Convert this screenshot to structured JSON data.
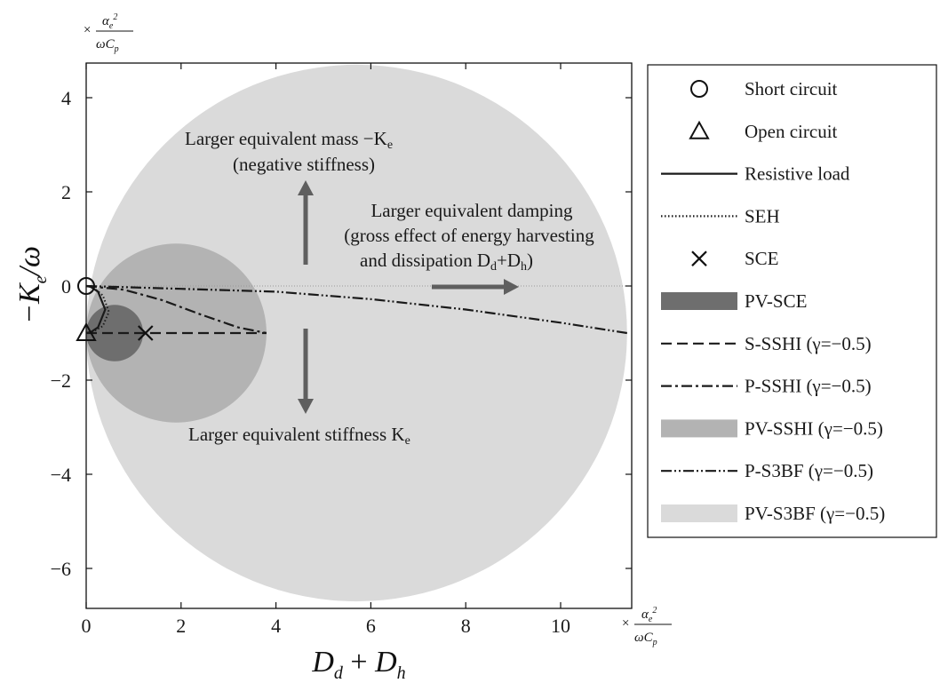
{
  "chart_data": {
    "type": "line",
    "xlabel": "D_d + D_h",
    "ylabel": "−K_e/ω",
    "x_unit": "× α_e² / ωC_p",
    "y_unit": "× α_e² / ωC_p",
    "xlim": [
      0,
      11.5
    ],
    "ylim": [
      -6.8,
      4.8
    ],
    "x_ticks": [
      0,
      2,
      4,
      6,
      8,
      10
    ],
    "y_ticks": [
      4,
      2,
      0,
      -2,
      -4,
      -6
    ],
    "grid": false,
    "legend_placement": "right, outside",
    "regions": [
      {
        "name": "PV-SCE",
        "center": [
          0.6,
          -1.0
        ],
        "radius": 0.6,
        "color": "#6e6e6e"
      },
      {
        "name": "PV-SSHI (γ=−0.5)",
        "center": [
          1.9,
          -1.0
        ],
        "radius": 1.9,
        "color": "#b3b3b3"
      },
      {
        "name": "PV-S3BF (γ=−0.5)",
        "center": [
          5.7,
          -1.0
        ],
        "radius": 5.7,
        "color": "#dadada"
      }
    ],
    "series": [
      {
        "name": "Resistive load",
        "style": "solid",
        "points": [
          [
            0,
            0
          ],
          [
            0.1,
            -0.02
          ],
          [
            0.25,
            -0.12
          ],
          [
            0.4,
            -0.5
          ],
          [
            0.25,
            -0.88
          ],
          [
            0.1,
            -0.98
          ],
          [
            0,
            -1
          ]
        ]
      },
      {
        "name": "SEH",
        "style": "dotted",
        "points": [
          [
            0,
            0
          ],
          [
            0.15,
            -0.03
          ],
          [
            0.35,
            -0.2
          ],
          [
            0.48,
            -0.55
          ],
          [
            0.35,
            -0.85
          ],
          [
            0.15,
            -0.97
          ],
          [
            0,
            -1
          ]
        ]
      },
      {
        "name": "S-SSHI (γ=−0.5)",
        "style": "dashed",
        "points": [
          [
            0,
            -1
          ],
          [
            3.8,
            -1
          ]
        ]
      },
      {
        "name": "P-SSHI (γ=−0.5)",
        "style": "dashdot",
        "points": [
          [
            0,
            0
          ],
          [
            0.8,
            -0.08
          ],
          [
            1.6,
            -0.3
          ],
          [
            2.4,
            -0.6
          ],
          [
            3.2,
            -0.88
          ],
          [
            3.8,
            -1
          ]
        ]
      },
      {
        "name": "P-S3BF (γ=−0.5)",
        "style": "dashdotdot",
        "points": [
          [
            0,
            0
          ],
          [
            2,
            -0.06
          ],
          [
            4,
            -0.12
          ],
          [
            6,
            -0.28
          ],
          [
            8,
            -0.5
          ],
          [
            10,
            -0.78
          ],
          [
            11.4,
            -1
          ]
        ]
      }
    ],
    "markers": [
      {
        "name": "Short circuit",
        "symbol": "circle",
        "x": 0,
        "y": 0
      },
      {
        "name": "Open circuit",
        "symbol": "triangle",
        "x": 0,
        "y": -1
      },
      {
        "name": "SCE",
        "symbol": "x",
        "x": 1.25,
        "y": -1
      }
    ],
    "legend": [
      {
        "label": "Short circuit",
        "kind": "circle"
      },
      {
        "label": "Open circuit",
        "kind": "triangle"
      },
      {
        "label": "Resistive load",
        "kind": "solid"
      },
      {
        "label": "SEH",
        "kind": "dotted"
      },
      {
        "label": "SCE",
        "kind": "x"
      },
      {
        "label": "PV-SCE",
        "kind": "patch",
        "color": "#6e6e6e"
      },
      {
        "label": "S-SSHI (γ=−0.5)",
        "kind": "dashed"
      },
      {
        "label": "P-SSHI (γ=−0.5)",
        "kind": "dashdot"
      },
      {
        "label": "PV-SSHI (γ=−0.5)",
        "kind": "patch",
        "color": "#b3b3b3"
      },
      {
        "label": "P-S3BF (γ=−0.5)",
        "kind": "dashdotdot"
      },
      {
        "label": "PV-S3BF (γ=−0.5)",
        "kind": "patch",
        "color": "#dadada"
      }
    ],
    "annotations": {
      "mass_line1": "Larger equivalent mass −K",
      "mass_line1_sub": "e",
      "mass_line2": "(negative stiffness)",
      "damp_line1": "Larger equivalent damping",
      "damp_line2": "(gross effect of energy harvesting",
      "damp_line3a": "and dissipation D",
      "damp_line3b": "d",
      "damp_line3c": "+D",
      "damp_line3d": "h",
      "damp_line3e": ")",
      "stiff_line": "Larger equivalent stiffness K",
      "stiff_line_sub": "e"
    }
  }
}
